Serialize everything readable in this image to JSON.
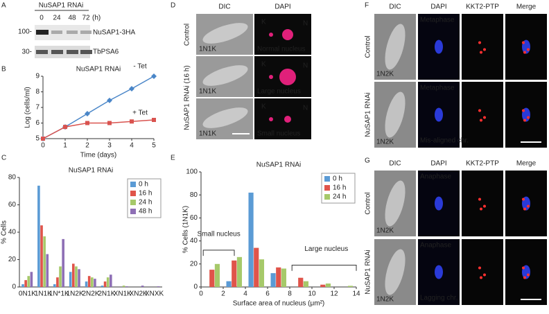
{
  "panel_letters": [
    "A",
    "B",
    "C",
    "D",
    "E",
    "F",
    "G"
  ],
  "blot": {
    "title": "NuSAP1 RNAi",
    "lanes": [
      "0",
      "24",
      "48",
      "72"
    ],
    "unit": "(h)",
    "markers": [
      "100-",
      "30-"
    ],
    "bands": [
      "NuSAP1-3HA",
      "TbPSA6"
    ]
  },
  "chart_data": [
    {
      "type": "line",
      "title": "NuSAP1 RNAi",
      "x": [
        0,
        1,
        2,
        3,
        4,
        5
      ],
      "xlim": [
        0,
        5
      ],
      "xticks": [
        0,
        1,
        2,
        3,
        4,
        5
      ],
      "ylim": [
        5,
        9
      ],
      "yticks": [
        5,
        6,
        7,
        8,
        9
      ],
      "x_label": "Time (days)",
      "y_label": "Log (cells/ml)",
      "series": [
        {
          "name": "- Tet",
          "color": "#4a86c8",
          "values": [
            5,
            5.75,
            6.6,
            7.45,
            8.2,
            9.0
          ]
        },
        {
          "name": "+ Tet",
          "color": "#d9534f",
          "values": [
            5,
            5.75,
            6.0,
            6.0,
            6.1,
            6.2
          ]
        }
      ]
    },
    {
      "type": "bar",
      "title": "NuSAP1 RNAi",
      "categories": [
        "0N1K",
        "1N1K",
        "1N*1K",
        "1N2K",
        "2N2K",
        "2N1K",
        "XN1K",
        "XN2K",
        "XNXK"
      ],
      "ylim": [
        0,
        80
      ],
      "yticks": [
        0,
        20,
        40,
        60,
        80
      ],
      "y_label": "% Cells",
      "legend": "upper right",
      "series": [
        {
          "name": "0 h",
          "color": "#5b9bd5",
          "values": [
            2,
            74,
            2,
            11,
            4,
            1,
            0,
            0,
            0
          ]
        },
        {
          "name": "16 h",
          "color": "#e0544a",
          "values": [
            5,
            45,
            7,
            17,
            8,
            4,
            0,
            0,
            0
          ]
        },
        {
          "name": "24 h",
          "color": "#a6c96a",
          "values": [
            8,
            37,
            15,
            15,
            7,
            7,
            1,
            0,
            0
          ]
        },
        {
          "name": "48 h",
          "color": "#8e6fb5",
          "values": [
            11,
            24,
            35,
            13,
            6,
            9,
            0.5,
            1,
            0.5
          ]
        }
      ]
    },
    {
      "type": "bar",
      "title": "NuSAP1 RNAi",
      "x": [
        1,
        3,
        5,
        7,
        9,
        11,
        13
      ],
      "xlim": [
        0,
        14
      ],
      "xticks": [
        0,
        2,
        4,
        6,
        8,
        10,
        12,
        14
      ],
      "ylim": [
        0,
        100
      ],
      "yticks": [
        0,
        20,
        40,
        60,
        80,
        100
      ],
      "x_label": "Surface area of nucleus (μm²)",
      "y_label": "% Cells (1N1K)",
      "annotations": [
        "Small nucleus",
        "Large nucleus"
      ],
      "legend": "upper right",
      "series": [
        {
          "name": "0 h",
          "color": "#5b9bd5",
          "values": [
            0,
            5,
            82,
            12,
            0,
            0,
            0
          ]
        },
        {
          "name": "16 h",
          "color": "#e0544a",
          "values": [
            15,
            23,
            34,
            17,
            8,
            2,
            0
          ]
        },
        {
          "name": "24 h",
          "color": "#a6c96a",
          "values": [
            20,
            26,
            24,
            16,
            5,
            3,
            1
          ]
        }
      ]
    }
  ],
  "micrographs_d": {
    "columns": [
      "DIC",
      "DAPI"
    ],
    "row_groups": [
      "Control",
      "NuSAP1 RNAi (16 h)"
    ],
    "rows": [
      {
        "stage": "1N1K",
        "labels": [
          "K",
          "N"
        ],
        "caption": "Normal nucleus"
      },
      {
        "stage": "1N1K",
        "labels": [
          "K",
          "N"
        ],
        "caption": "Large nucleus"
      },
      {
        "stage": "1N1K",
        "labels": [
          "K",
          "N"
        ],
        "caption": "Small nucleus"
      }
    ]
  },
  "micrographs_f": {
    "columns": [
      "DIC",
      "DAPI",
      "KKT2-PTP",
      "Merge"
    ],
    "rows": [
      {
        "group": "Control",
        "phase": "Metaphase",
        "stage": "1N2K"
      },
      {
        "group": "NuSAP1 RNAi",
        "phase": "Metaphase",
        "stage": "1N2K",
        "note": "Mis-aligned chr."
      }
    ]
  },
  "micrographs_g": {
    "columns": [
      "DIC",
      "DAPI",
      "KKT2-PTP",
      "Merge"
    ],
    "rows": [
      {
        "group": "Control",
        "phase": "Anaphase",
        "stage": "1N2K"
      },
      {
        "group": "NuSAP1 RNAi",
        "phase": "Anaphase",
        "stage": "1N2K",
        "note": "Lagging chr."
      }
    ]
  }
}
